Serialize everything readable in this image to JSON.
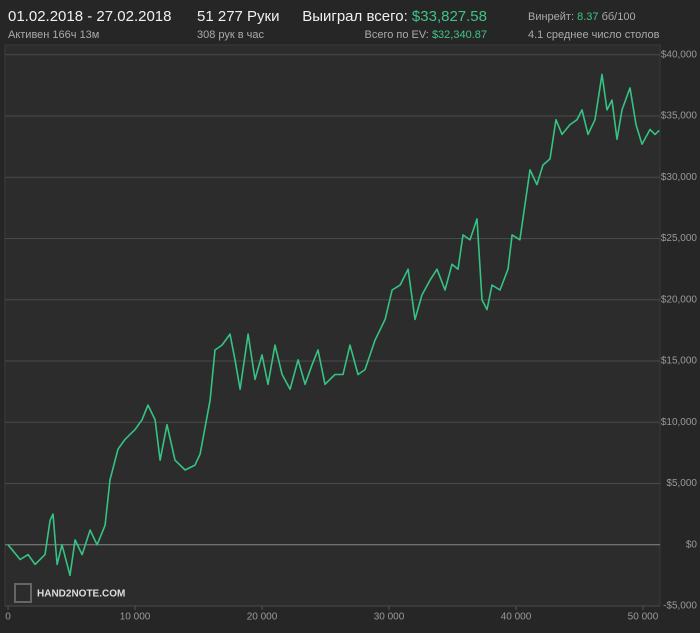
{
  "stats": {
    "period": "01.02.2018 - 27.02.2018",
    "active": "Активен 166ч 13м",
    "hands": "51 277 Руки",
    "hands_rate": "308 рук в час",
    "won_label": "Выиграл всего:",
    "won_value": "$33,827.58",
    "ev_label": "Всего по EV:",
    "ev_value": "$32,340.87",
    "winrate_label": "Винрейт:",
    "winrate_value": "8.37",
    "winrate_unit": "бб/100",
    "tables": "4.1 среднее число столов"
  },
  "logo": "HAND2NOTE.COM",
  "chart_data": {
    "type": "line",
    "xlim": [
      -240,
      51340
    ],
    "ylim": [
      -5000,
      40800
    ],
    "xticks": [
      0,
      {
        "value": 10000,
        "label": "10 000"
      },
      {
        "value": 20000,
        "label": "20 000"
      },
      {
        "value": 30000,
        "label": "30 000"
      },
      {
        "value": 40000,
        "label": "40 000"
      },
      {
        "value": 50000,
        "label": "50 000"
      }
    ],
    "yticks": [
      {
        "value": -5000,
        "label": "-$5,000"
      },
      {
        "value": 0,
        "label": "$0"
      },
      {
        "value": 5000,
        "label": "$5,000"
      },
      {
        "value": 10000,
        "label": "$10,000"
      },
      {
        "value": 15000,
        "label": "$15,000"
      },
      {
        "value": 20000,
        "label": "$20,000"
      },
      {
        "value": 25000,
        "label": "$25,000"
      },
      {
        "value": 30000,
        "label": "$30,000"
      },
      {
        "value": 35000,
        "label": "$35,000"
      },
      {
        "value": 40000,
        "label": "$40,000"
      }
    ],
    "grid": true,
    "series": [
      {
        "color": "#35c383",
        "x": [
          0,
          320,
          950,
          1580,
          2130,
          2910,
          3310,
          3540,
          3860,
          4250,
          4880,
          5280,
          5830,
          6460,
          7010,
          7640,
          8030,
          8660,
          9210,
          10000,
          10550,
          11020,
          11580,
          11970,
          12520,
          13150,
          13940,
          14720,
          15120,
          15910,
          16300,
          16850,
          17480,
          17870,
          18270,
          18900,
          19450,
          20000,
          20470,
          21020,
          21580,
          22210,
          22840,
          23390,
          23940,
          24410,
          24960,
          25750,
          26380,
          26930,
          27560,
          28110,
          28900,
          29690,
          30240,
          30870,
          31500,
          32050,
          32600,
          33230,
          33780,
          34410,
          34960,
          35430,
          35830,
          36380,
          36930,
          37320,
          37720,
          38110,
          38740,
          39370,
          39690,
          40310,
          40710,
          41100,
          41650,
          42130,
          42680,
          43150,
          43620,
          44250,
          44800,
          45200,
          45670,
          46220,
          46770,
          47170,
          47560,
          47950,
          48350,
          48980,
          49450,
          49920,
          50550,
          50950,
          51277
        ],
        "values": [
          0,
          -400,
          -1200,
          -800,
          -1600,
          -800,
          2000,
          2500,
          -1600,
          0,
          -2500,
          400,
          -800,
          1200,
          0,
          1600,
          5300,
          7800,
          8600,
          9400,
          10200,
          11400,
          10200,
          6900,
          9800,
          6900,
          6100,
          6500,
          7400,
          11800,
          15900,
          16300,
          17200,
          15100,
          12700,
          17200,
          13500,
          15500,
          13100,
          16300,
          13900,
          12700,
          15100,
          13100,
          14700,
          15900,
          13100,
          13900,
          13900,
          16300,
          13900,
          14300,
          16700,
          18400,
          20800,
          21200,
          22500,
          18400,
          20400,
          21600,
          22500,
          20800,
          22900,
          22500,
          25300,
          24900,
          26600,
          20000,
          19200,
          21200,
          20800,
          22500,
          25300,
          24900,
          27800,
          30600,
          29400,
          31000,
          31500,
          34700,
          33500,
          34300,
          34700,
          35500,
          33500,
          34700,
          38400,
          35500,
          36300,
          33100,
          35500,
          37300,
          34300,
          32700,
          33900,
          33500,
          33828
        ]
      }
    ]
  }
}
